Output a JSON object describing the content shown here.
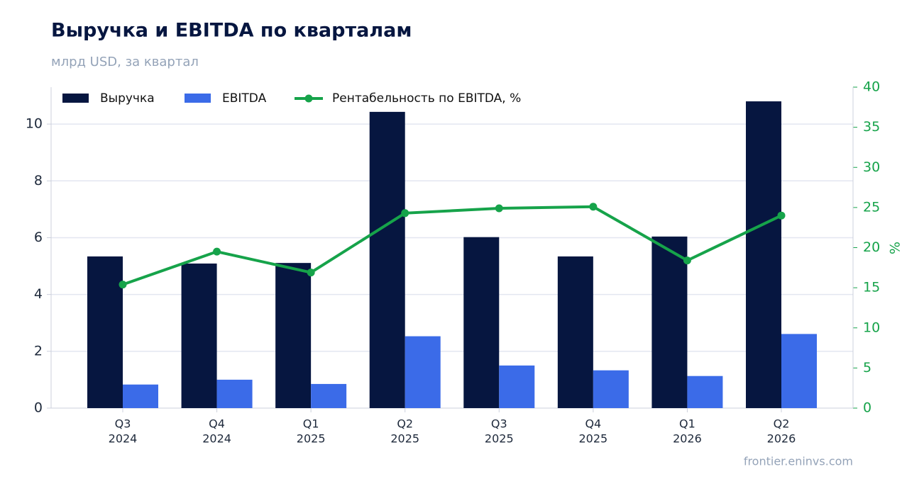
{
  "chart_data": {
    "type": "bar-line",
    "title": "Выручка и EBITDA по кварталам",
    "subtitle": "млрд USD, за квартал",
    "y2_label": "%",
    "source": "frontier.eninvs.com",
    "categories": [
      [
        "Q3",
        "2024"
      ],
      [
        "Q4",
        "2024"
      ],
      [
        "Q1",
        "2025"
      ],
      [
        "Q2",
        "2025"
      ],
      [
        "Q3",
        "2025"
      ],
      [
        "Q4",
        "2025"
      ],
      [
        "Q1",
        "2026"
      ],
      [
        "Q2",
        "2026"
      ]
    ],
    "series": [
      {
        "name": "Выручка",
        "type": "bar",
        "color": "#061640",
        "values": [
          5.34,
          5.09,
          5.11,
          10.43,
          6.02,
          5.34,
          6.04,
          10.8
        ]
      },
      {
        "name": "EBITDA",
        "type": "bar",
        "color": "#3b6be8",
        "values": [
          0.83,
          1.0,
          0.85,
          2.53,
          1.5,
          1.33,
          1.13,
          2.61
        ]
      },
      {
        "name": "Рентабельность по EBITDA, %",
        "type": "line",
        "axis": "y2",
        "color": "#16a34a",
        "values": [
          15.4,
          19.5,
          16.9,
          24.3,
          24.9,
          25.1,
          18.4,
          24.0
        ]
      }
    ],
    "ylim": [
      0,
      11.3
    ],
    "yticks": [
      0,
      2,
      4,
      6,
      8,
      10
    ],
    "y2lim": [
      0,
      40
    ],
    "y2ticks": [
      0,
      5,
      10,
      15,
      20,
      25,
      30,
      35,
      40
    ],
    "grid": true,
    "legend": "top-left"
  }
}
